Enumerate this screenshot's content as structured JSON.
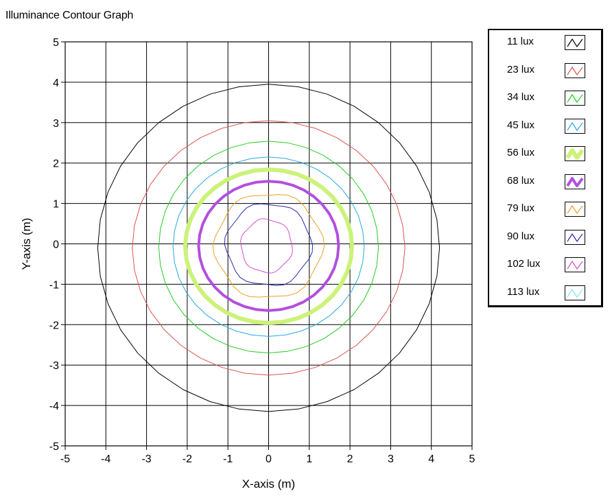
{
  "chart_data": {
    "type": "contour",
    "title": "Illuminance Contour Graph",
    "xlabel": "X-axis (m)",
    "ylabel": "Y-axis (m)",
    "xlim": [
      -5,
      5
    ],
    "ylim": [
      -5,
      5
    ],
    "xticks": [
      "-5",
      "-4",
      "-3",
      "-2",
      "-1",
      "0",
      "1",
      "2",
      "3",
      "4",
      "5"
    ],
    "yticks": [
      "5",
      "4",
      "3",
      "2",
      "1",
      "0",
      "-1",
      "-2",
      "-3",
      "-4",
      "-5"
    ],
    "grid": true,
    "legend_position": "right",
    "contours": [
      {
        "label": "11 lux",
        "color": "#000000",
        "width": 1,
        "center": [
          0.0,
          -0.1
        ],
        "rx": 4.2,
        "ry": 4.05
      },
      {
        "label": "23 lux",
        "color": "#d9534f",
        "width": 1,
        "center": [
          0.0,
          -0.1
        ],
        "rx": 3.35,
        "ry": 3.15
      },
      {
        "label": "34 lux",
        "color": "#22cc22",
        "width": 1,
        "center": [
          0.0,
          -0.08
        ],
        "rx": 2.7,
        "ry": 2.62
      },
      {
        "label": "45 lux",
        "color": "#22aadd",
        "width": 1,
        "center": [
          0.0,
          -0.07
        ],
        "rx": 2.35,
        "ry": 2.22
      },
      {
        "label": "56 lux",
        "color": "#ccf27a",
        "width": 6,
        "center": [
          0.0,
          -0.06
        ],
        "rx": 2.05,
        "ry": 1.9
      },
      {
        "label": "68 lux",
        "color": "#b24fe0",
        "width": 4,
        "center": [
          0.0,
          -0.05
        ],
        "rx": 1.72,
        "ry": 1.6
      },
      {
        "label": "79 lux",
        "color": "#e8a126",
        "width": 1,
        "center": [
          0.0,
          -0.05
        ],
        "rx": 1.32,
        "ry": 1.3
      },
      {
        "label": "90 lux",
        "color": "#2a2aa8",
        "width": 1,
        "center": [
          0.0,
          -0.02
        ],
        "rx": 1.05,
        "ry": 1.02
      },
      {
        "label": "102 lux",
        "color": "#d24fc6",
        "width": 1,
        "center": [
          -0.05,
          -0.05
        ],
        "rx": 0.63,
        "ry": 0.66
      },
      {
        "label": "113 lux",
        "color": "#7fe8ee",
        "width": 1,
        "center": [
          0.0,
          0.0
        ],
        "rx": 0.0,
        "ry": 0.0
      }
    ]
  }
}
